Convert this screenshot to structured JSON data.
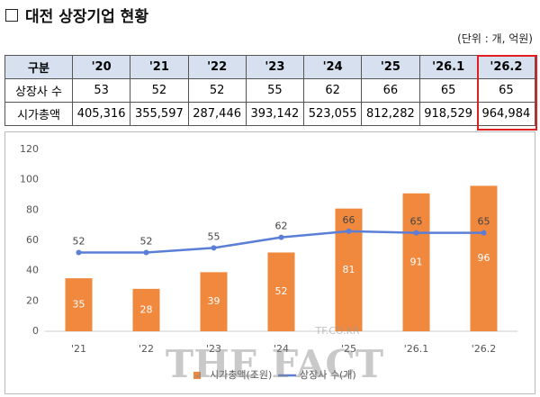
{
  "header": {
    "title": "대전 상장기업 현황",
    "unit": "(단위 : 개, 억원)"
  },
  "table": {
    "columns": [
      "구분",
      "'20",
      "'21",
      "'22",
      "'23",
      "'24",
      "'25",
      "'26.1",
      "'26.2"
    ],
    "rows": [
      [
        "상장사 수",
        "53",
        "52",
        "52",
        "55",
        "62",
        "66",
        "65",
        "65"
      ],
      [
        "시가총액",
        "405,316",
        "355,597",
        "287,446",
        "393,142",
        "523,055",
        "812,282",
        "918,529",
        "964,984"
      ]
    ]
  },
  "chart_data": {
    "type": "bar-line",
    "categories": [
      "'21",
      "'22",
      "'23",
      "'24",
      "'25",
      "'26.1",
      "'26.2"
    ],
    "series": [
      {
        "name": "시가총액(조원)",
        "type": "bar",
        "color": "#f0883e",
        "values": [
          35,
          28,
          39,
          52,
          81,
          91,
          96
        ]
      },
      {
        "name": "상장사 수(개)",
        "type": "line",
        "color": "#5b7fd6",
        "values": [
          52,
          52,
          55,
          62,
          66,
          65,
          65
        ]
      }
    ],
    "ylim": [
      0,
      120
    ],
    "yticks": [
      0,
      20,
      40,
      60,
      80,
      100,
      120
    ],
    "grid": false,
    "legend": "bottom"
  },
  "watermark": {
    "text": "THE FACT",
    "site": "TF.CO.KR"
  }
}
